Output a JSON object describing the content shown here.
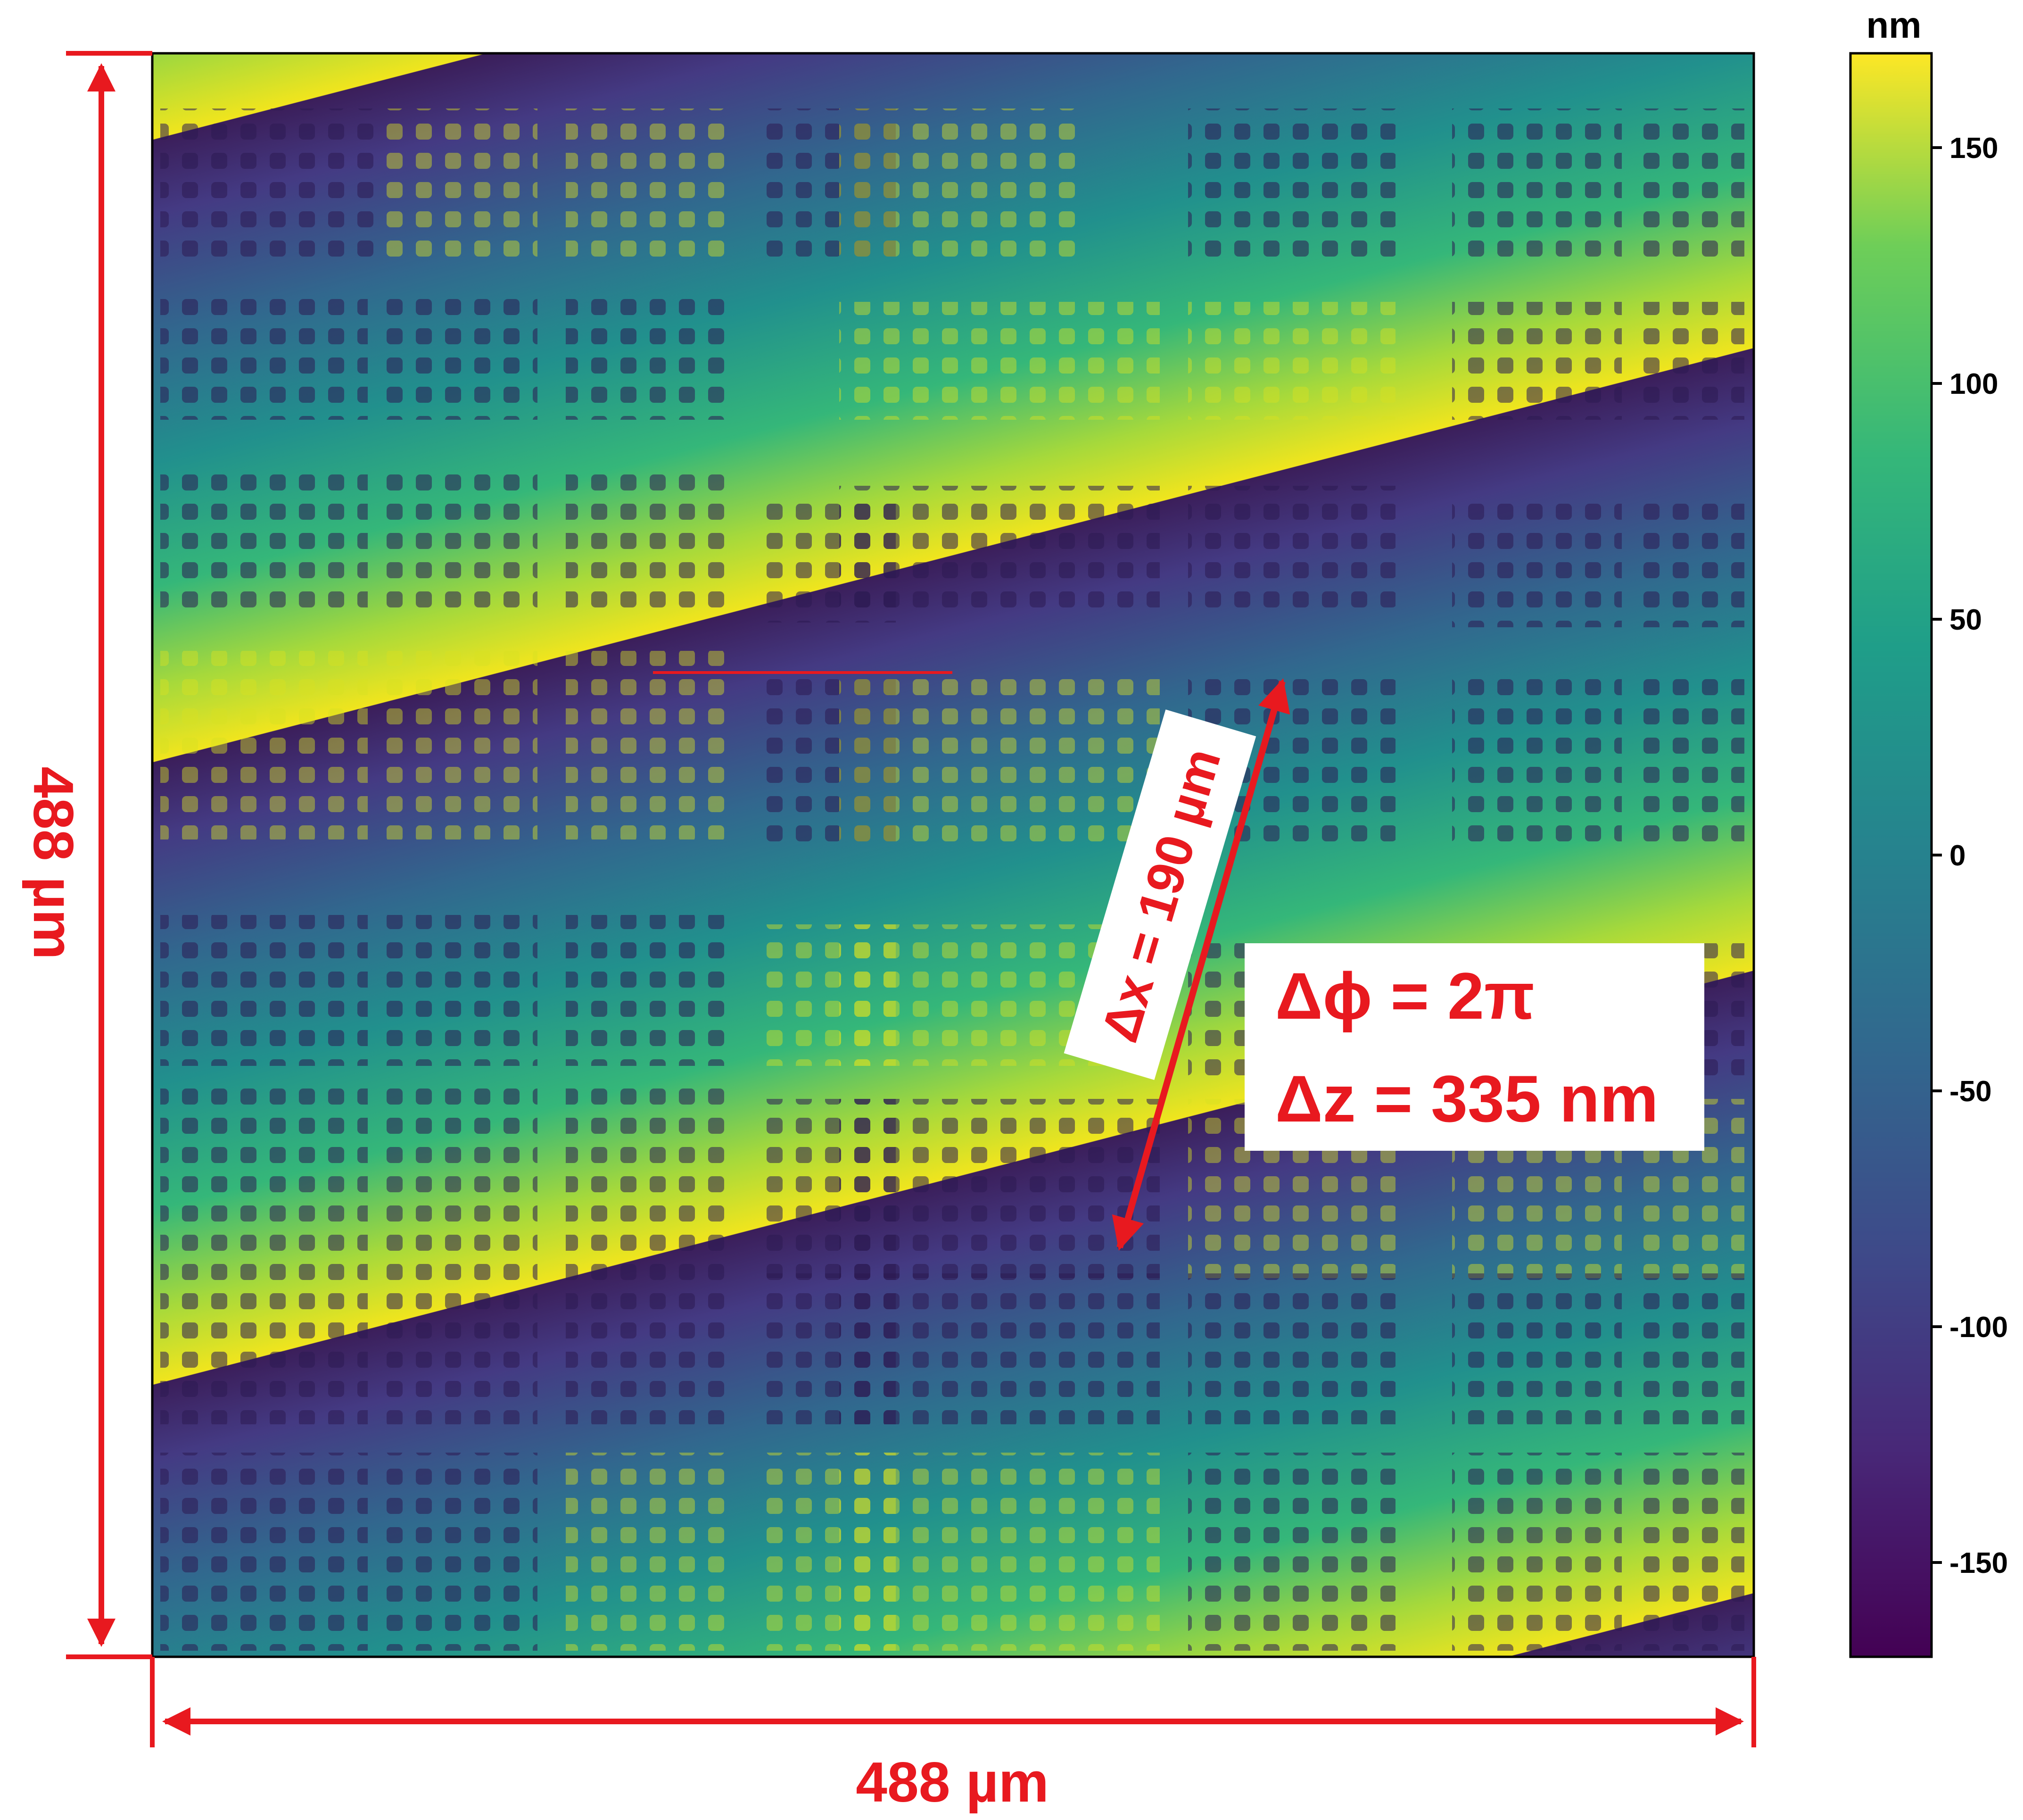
{
  "image": {
    "colors": {
      "annotation": "#e8191f",
      "box_fill": "#ffffff"
    },
    "dimension_x": "488 µm",
    "dimension_y": "488 µm",
    "delta_x": "Δx = 190 µm",
    "delta_phi": "Δϕ = 2π",
    "delta_z": "Δz = 335 nm"
  },
  "colorbar": {
    "unit": "nm",
    "min": -170,
    "max": 170,
    "ticks": [
      "150",
      "100",
      "50",
      "0",
      "-50",
      "-100",
      "-150"
    ],
    "tick_values": [
      150,
      100,
      50,
      0,
      -50,
      -100,
      -150
    ],
    "colormap": "viridis"
  }
}
